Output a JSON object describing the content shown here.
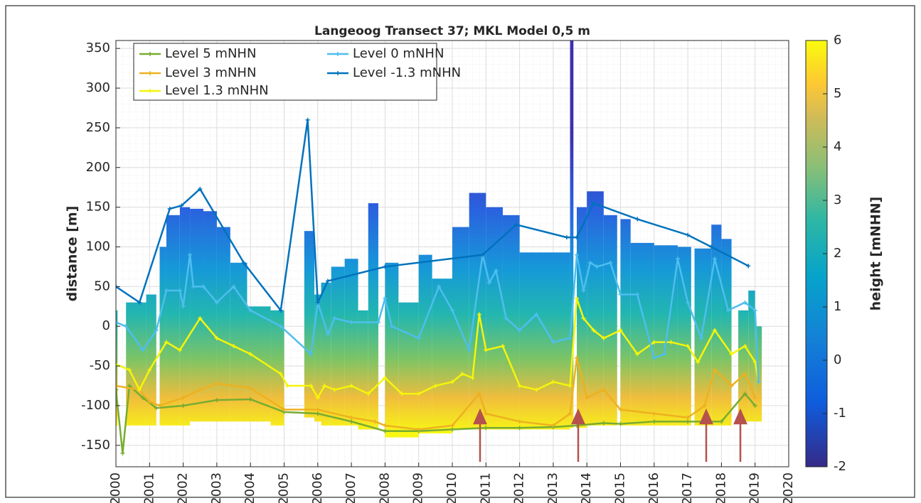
{
  "chart_data": {
    "type": "line",
    "title": "Langeoog Transect 37; MKL Model 0,5 m",
    "ylabel": "distance [m]",
    "xlim": [
      2000,
      2020
    ],
    "ylim": [
      -177,
      360
    ],
    "xticks": [
      2000,
      2001,
      2002,
      2003,
      2004,
      2005,
      2006,
      2007,
      2008,
      2009,
      2010,
      2011,
      2012,
      2013,
      2014,
      2015,
      2016,
      2017,
      2018,
      2019,
      2020
    ],
    "yticks": [
      -150,
      -100,
      -50,
      0,
      50,
      100,
      150,
      200,
      250,
      300,
      350
    ],
    "grid": true,
    "legend": "upper left",
    "series": [
      {
        "name": "Level 5 mNHN",
        "color": "#77ac30",
        "x": [
          2000.0,
          2000.2,
          2000.4,
          2000.8,
          2001.2,
          2002.0,
          2003.0,
          2004.0,
          2005.0,
          2006.0,
          2007.0,
          2008.0,
          2009.0,
          2010.0,
          2011.0,
          2012.0,
          2013.0,
          2013.7,
          2014.5,
          2015.0,
          2016.0,
          2017.0,
          2018.0,
          2018.7,
          2019.0
        ],
        "values": [
          -80,
          -160,
          -75,
          -90,
          -103,
          -100,
          -93,
          -92,
          -108,
          -110,
          -120,
          -132,
          -132,
          -130,
          -128,
          -128,
          -127,
          -125,
          -122,
          -123,
          -120,
          -120,
          -120,
          -85,
          -100
        ]
      },
      {
        "name": "Level 3 mNHN",
        "color": "#edb120",
        "x": [
          2000.0,
          2000.7,
          2001.0,
          2001.3,
          2002.0,
          2002.5,
          2003.0,
          2004.0,
          2005.0,
          2006.0,
          2007.0,
          2007.7,
          2008.0,
          2009.0,
          2010.0,
          2010.8,
          2011.0,
          2012.0,
          2013.0,
          2013.5,
          2013.7,
          2014.0,
          2014.5,
          2015.0,
          2016.0,
          2017.0,
          2017.5,
          2017.8,
          2018.3,
          2018.7,
          2019.0
        ],
        "values": [
          -75,
          -80,
          -95,
          -100,
          -90,
          -80,
          -72,
          -78,
          -105,
          -105,
          -115,
          -120,
          -125,
          -130,
          -125,
          -85,
          -110,
          -120,
          -125,
          -110,
          -40,
          -90,
          -80,
          -105,
          -110,
          -115,
          -100,
          -55,
          -75,
          -60,
          -90
        ]
      },
      {
        "name": "Level 1.3 mNHN",
        "color": "#f5f50a",
        "x": [
          2000.0,
          2000.4,
          2000.7,
          2001.0,
          2001.5,
          2001.9,
          2002.5,
          2003.0,
          2003.5,
          2004.0,
          2004.9,
          2005.1,
          2005.8,
          2006.0,
          2006.2,
          2006.5,
          2007.0,
          2007.5,
          2008.0,
          2008.5,
          2009.0,
          2009.5,
          2010.0,
          2010.3,
          2010.6,
          2010.8,
          2011.0,
          2011.5,
          2012.0,
          2012.5,
          2013.0,
          2013.5,
          2013.7,
          2013.9,
          2014.2,
          2014.5,
          2015.0,
          2015.5,
          2016.0,
          2016.5,
          2017.0,
          2017.3,
          2017.8,
          2018.3,
          2018.7,
          2019.0,
          2019.1
        ],
        "values": [
          -48,
          -55,
          -80,
          -55,
          -20,
          -30,
          10,
          -15,
          -25,
          -35,
          -60,
          -75,
          -75,
          -90,
          -75,
          -80,
          -75,
          -85,
          -65,
          -85,
          -85,
          -75,
          -70,
          -60,
          -65,
          15,
          -30,
          -25,
          -75,
          -80,
          -70,
          -75,
          35,
          10,
          -5,
          -15,
          -5,
          -35,
          -20,
          -20,
          -25,
          -45,
          -5,
          -35,
          -25,
          -45,
          -70
        ]
      },
      {
        "name": "Level 0 mNHN",
        "color": "#4dbeee",
        "x": [
          2000.0,
          2000.3,
          2000.8,
          2001.2,
          2001.5,
          2001.9,
          2002.0,
          2002.2,
          2002.3,
          2002.6,
          2003.0,
          2003.5,
          2004.0,
          2004.9,
          2005.8,
          2006.0,
          2006.3,
          2006.5,
          2007.0,
          2007.8,
          2008.0,
          2008.2,
          2009.0,
          2009.6,
          2010.0,
          2010.5,
          2010.9,
          2011.1,
          2011.3,
          2011.6,
          2012.0,
          2012.5,
          2013.0,
          2013.5,
          2013.7,
          2013.9,
          2014.1,
          2014.3,
          2014.7,
          2015.0,
          2015.5,
          2016.0,
          2016.3,
          2016.7,
          2017.0,
          2017.4,
          2017.8,
          2018.2,
          2018.7,
          2019.0,
          2019.1
        ],
        "values": [
          5,
          0,
          -30,
          -5,
          45,
          45,
          25,
          90,
          50,
          50,
          30,
          50,
          20,
          0,
          -35,
          30,
          -10,
          10,
          5,
          5,
          35,
          0,
          -15,
          50,
          20,
          -30,
          90,
          55,
          70,
          10,
          -5,
          15,
          -20,
          -15,
          90,
          45,
          80,
          75,
          80,
          40,
          40,
          -40,
          -35,
          85,
          30,
          -15,
          85,
          20,
          30,
          20,
          -70
        ]
      },
      {
        "name": "Level -1.3 mNHN",
        "color": "#0072bd",
        "x": [
          2000.0,
          2000.7,
          2001.6,
          2001.95,
          2002.5,
          2003.8,
          2004.9,
          2005.7,
          2006.0,
          2006.3,
          2008.0,
          2010.9,
          2011.9,
          2013.4,
          2013.7,
          2014.2,
          2015.5,
          2017.0,
          2017.7,
          2018.8
        ],
        "values": [
          50,
          30,
          148,
          152,
          173,
          80,
          20,
          260,
          30,
          57,
          75,
          90,
          128,
          112,
          112,
          155,
          135,
          115,
          100,
          76
        ]
      }
    ],
    "surface": {
      "x_start": [
        2000.0,
        2000.3,
        2000.9,
        2001.3,
        2001.5,
        2001.9,
        2002.2,
        2002.6,
        2003.0,
        2003.4,
        2003.9,
        2004.6,
        2005.6,
        2005.9,
        2006.1,
        2006.4,
        2006.8,
        2007.2,
        2007.5,
        2008.0,
        2008.4,
        2009.0,
        2009.4,
        2010.0,
        2010.5,
        2011.0,
        2011.5,
        2012.0,
        2013.5,
        2013.7,
        2014.0,
        2014.5,
        2015.0,
        2015.3,
        2016.0,
        2016.7,
        2017.2,
        2017.7,
        2018.0,
        2018.5,
        2018.8,
        2019.0
      ],
      "x_end": [
        2000.05,
        2000.9,
        2001.2,
        2001.5,
        2001.9,
        2002.2,
        2002.6,
        2003.0,
        2003.4,
        2003.9,
        2004.6,
        2005.0,
        2005.9,
        2006.1,
        2006.4,
        2006.8,
        2007.2,
        2007.5,
        2007.8,
        2008.4,
        2009.0,
        2009.4,
        2010.0,
        2010.5,
        2011.0,
        2011.5,
        2012.0,
        2013.5,
        2013.6,
        2014.0,
        2014.5,
        2014.9,
        2015.3,
        2016.0,
        2016.7,
        2017.1,
        2017.7,
        2018.0,
        2018.3,
        2018.8,
        2019.0,
        2019.2
      ],
      "top": [
        20,
        30,
        40,
        100,
        140,
        150,
        148,
        145,
        125,
        80,
        25,
        20,
        120,
        40,
        55,
        75,
        85,
        20,
        155,
        80,
        30,
        90,
        60,
        125,
        168,
        150,
        140,
        93,
        360,
        150,
        170,
        140,
        135,
        105,
        102,
        100,
        98,
        128,
        110,
        20,
        45,
        0
      ],
      "bottom": [
        -125,
        -125,
        -125,
        -125,
        -125,
        -125,
        -120,
        -120,
        -120,
        -120,
        -120,
        -125,
        -115,
        -120,
        -125,
        -125,
        -125,
        -130,
        -130,
        -140,
        -140,
        -135,
        -135,
        -130,
        -130,
        -130,
        -130,
        -130,
        -128,
        -128,
        -125,
        -125,
        -125,
        -125,
        -125,
        -125,
        -125,
        -125,
        -125,
        -120,
        -120,
        -120
      ]
    },
    "colorbar": {
      "label": "height [mNHN]",
      "lim": [
        -2,
        6
      ],
      "ticks": [
        -2,
        -1,
        0,
        1,
        2,
        3,
        4,
        5,
        6
      ]
    }
  }
}
